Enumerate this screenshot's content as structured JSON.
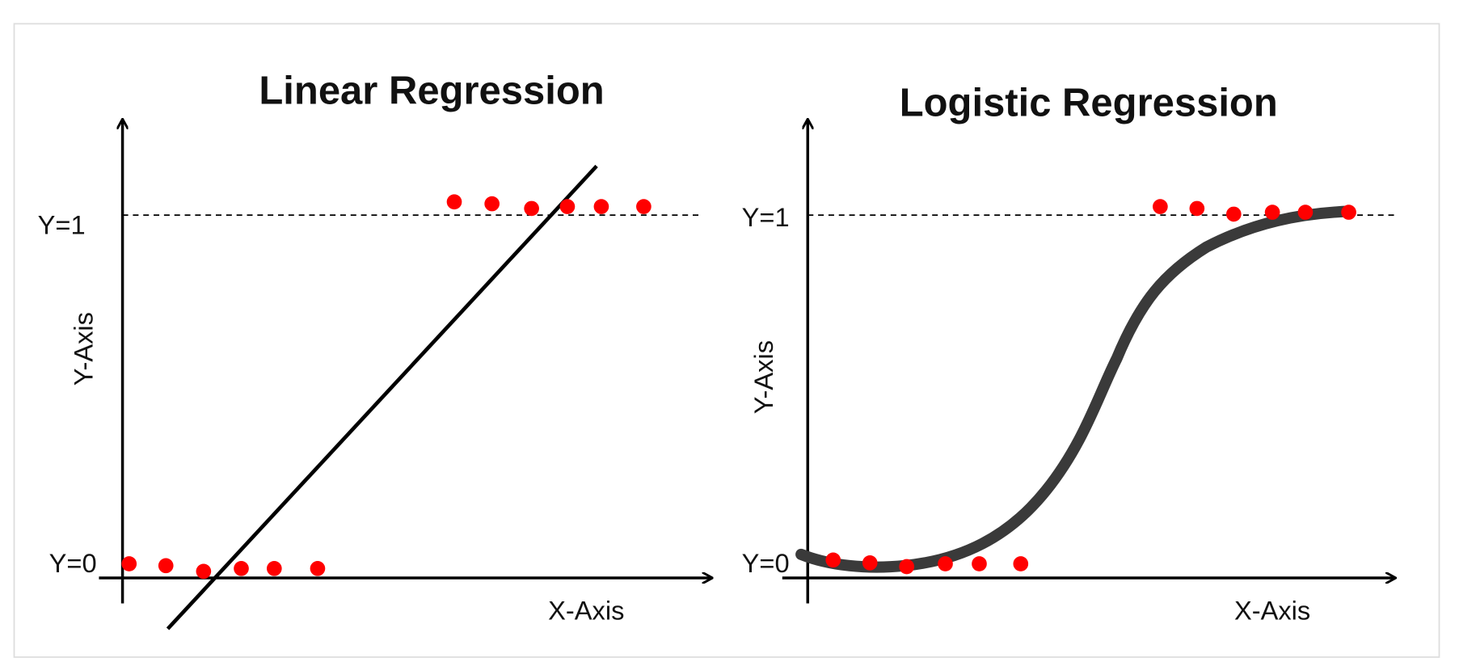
{
  "panels": [
    {
      "title": "Linear Regression",
      "y1_label": "Y=1",
      "y0_label": "Y=0",
      "y_axis_label": "Y-Axis",
      "x_axis_label": "X-Axis"
    },
    {
      "title": "Logistic Regression",
      "y1_label": "Y=1",
      "y0_label": "Y=0",
      "y_axis_label": "Y-Axis",
      "x_axis_label": "X-Axis"
    }
  ]
}
